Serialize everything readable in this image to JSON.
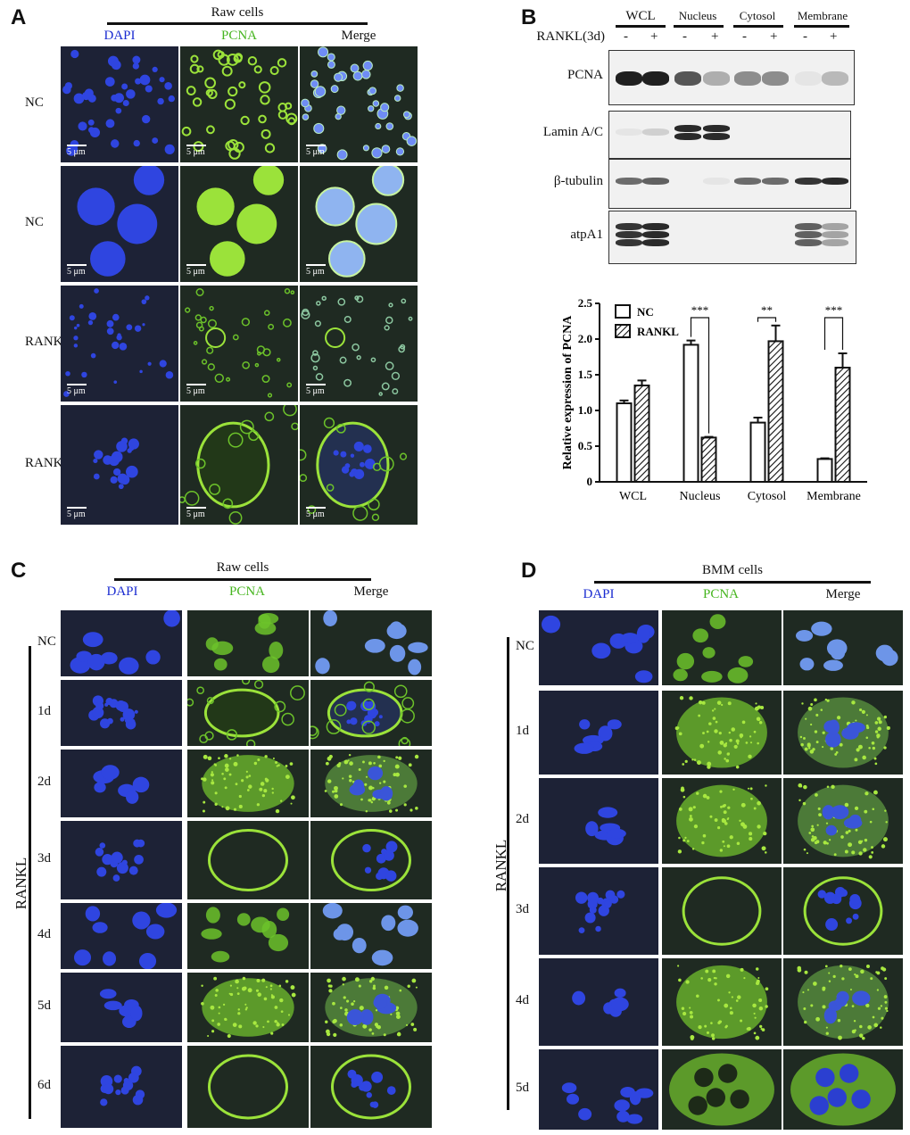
{
  "panels": {
    "A": {
      "letter": "A",
      "title": "Raw cells",
      "columns": [
        "DAPI",
        "PCNA",
        "Merge"
      ],
      "rows": [
        "NC",
        "NC",
        "RANKL",
        "RANKL"
      ],
      "scale_bar": "5 μm"
    },
    "B": {
      "letter": "B",
      "fractions": [
        "WCL",
        "Nucleus",
        "Cytosol",
        "Membrane"
      ],
      "treatment_label": "RANKL(3d)",
      "signs": [
        "-",
        "+",
        "-",
        "+",
        "-",
        "+",
        "-",
        "+"
      ],
      "blots": [
        "PCNA",
        "Lamin A/C",
        "β-tubulin",
        "atpA1"
      ]
    },
    "C": {
      "letter": "C",
      "title": "Raw cells",
      "columns": [
        "DAPI",
        "PCNA",
        "Merge"
      ],
      "rows": [
        "NC",
        "1d",
        "2d",
        "3d",
        "4d",
        "5d",
        "6d"
      ],
      "group_label": "RANKL"
    },
    "D": {
      "letter": "D",
      "title": "BMM cells",
      "columns": [
        "DAPI",
        "PCNA",
        "Merge"
      ],
      "rows": [
        "NC",
        "1d",
        "2d",
        "3d",
        "4d",
        "5d"
      ],
      "group_label": "RANKL"
    }
  },
  "colors": {
    "dapi": "#1a2bd1",
    "pcna": "#46b51f",
    "bar_nc": "#ffffff",
    "bar_rankl": "hatched"
  },
  "chart_data": {
    "type": "bar",
    "categories": [
      "WCL",
      "Nucleus",
      "Cytosol",
      "Membrane"
    ],
    "series": [
      {
        "name": "NC",
        "values": [
          1.1,
          1.92,
          0.83,
          0.32
        ],
        "errors": [
          0.04,
          0.06,
          0.07,
          0.01
        ]
      },
      {
        "name": "RANKL",
        "values": [
          1.35,
          0.62,
          1.97,
          1.6
        ],
        "errors": [
          0.07,
          0.01,
          0.22,
          0.2
        ]
      }
    ],
    "ylabel": "Relative expression of PCNA",
    "ylim": [
      0,
      2.5
    ],
    "yticks": [
      0,
      0.5,
      1,
      1.5,
      2,
      2.5
    ],
    "yticklabels": [
      "0",
      "0.5",
      "1.0",
      "1.5",
      "2.0",
      "2.5"
    ],
    "significance": [
      "***",
      "**",
      "***"
    ],
    "significance_categories": [
      "Nucleus",
      "Cytosol",
      "Membrane"
    ],
    "legend": "top-left",
    "grid": false
  }
}
